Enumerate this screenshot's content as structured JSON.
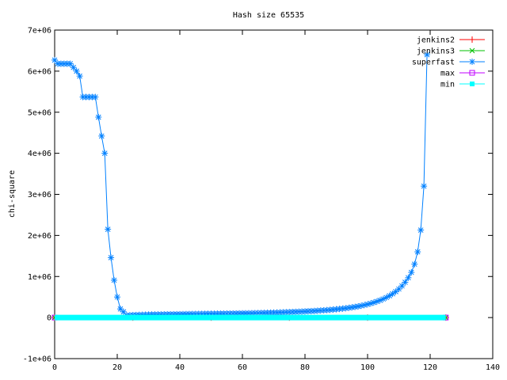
{
  "chart_data": {
    "type": "line",
    "title": "Hash size 65535",
    "xlabel": "",
    "ylabel": "chi-square",
    "xlim": [
      0,
      140
    ],
    "ylim": [
      -1000000,
      7000000
    ],
    "x_ticks": [
      0,
      20,
      40,
      60,
      80,
      100,
      120,
      140
    ],
    "x_tick_labels": [
      "0",
      "20",
      "40",
      "60",
      "80",
      "100",
      "120",
      "140"
    ],
    "y_ticks": [
      -1000000,
      0,
      1000000,
      2000000,
      3000000,
      4000000,
      5000000,
      6000000,
      7000000
    ],
    "y_tick_labels": [
      "-1e+06",
      "0",
      "1e+06",
      "2e+06",
      "3e+06",
      "4e+06",
      "5e+06",
      "6e+06",
      "7e+06"
    ],
    "grid": false,
    "legend_position": "top-right",
    "series": [
      {
        "name": "jenkins2",
        "color": "#ff0000",
        "marker": "plus",
        "x": [
          0,
          25,
          50,
          75,
          100,
          125
        ],
        "y": [
          0,
          0,
          0,
          0,
          0,
          0
        ]
      },
      {
        "name": "jenkins3",
        "color": "#00c000",
        "marker": "cross",
        "x": [
          0,
          25,
          50,
          75,
          100,
          125
        ],
        "y": [
          0,
          0,
          0,
          0,
          0,
          0
        ]
      },
      {
        "name": "superfast",
        "color": "#0080ff",
        "marker": "star",
        "x": [
          0,
          1,
          2,
          3,
          4,
          5,
          6,
          7,
          8,
          9,
          10,
          11,
          12,
          13,
          14,
          15,
          16,
          17,
          18,
          19,
          20,
          21,
          22,
          23,
          24,
          25,
          26,
          27,
          28,
          29,
          30,
          31,
          32,
          33,
          34,
          35,
          36,
          37,
          38,
          39,
          40,
          41,
          42,
          43,
          44,
          45,
          46,
          47,
          48,
          49,
          50,
          51,
          52,
          53,
          54,
          55,
          56,
          57,
          58,
          59,
          60,
          61,
          62,
          63,
          64,
          65,
          66,
          67,
          68,
          69,
          70,
          71,
          72,
          73,
          74,
          75,
          76,
          77,
          78,
          79,
          80,
          81,
          82,
          83,
          84,
          85,
          86,
          87,
          88,
          89,
          90,
          91,
          92,
          93,
          94,
          95,
          96,
          97,
          98,
          99,
          100,
          101,
          102,
          103,
          104,
          105,
          106,
          107,
          108,
          109,
          110,
          111,
          112,
          113,
          114,
          115,
          116,
          117,
          118,
          119,
          120,
          121,
          122,
          123,
          124,
          125
        ],
        "y": [
          6270000,
          6180000,
          6180000,
          6180000,
          6180000,
          6180000,
          6090000,
          6000000,
          5880000,
          5370000,
          5370000,
          5370000,
          5370000,
          5370000,
          4880000,
          4420000,
          4000000,
          2150000,
          1460000,
          910000,
          500000,
          210000,
          140000,
          50000,
          55000,
          60000,
          62000,
          65000,
          67000,
          70000,
          72000,
          74000,
          75000,
          76000,
          77000,
          78000,
          79000,
          80000,
          81000,
          82000,
          83000,
          84000,
          85000,
          86000,
          87000,
          88000,
          89000,
          90000,
          91000,
          92000,
          93000,
          94000,
          95000,
          96000,
          97000,
          98000,
          99000,
          100000,
          101000,
          102000,
          103000,
          104000,
          105000,
          106000,
          108000,
          110000,
          112000,
          114000,
          116000,
          118000,
          120000,
          122000,
          125000,
          128000,
          131000,
          134000,
          137000,
          140000,
          143000,
          146000,
          150000,
          154000,
          158000,
          162000,
          167000,
          172000,
          177000,
          182000,
          188000,
          195000,
          202000,
          210000,
          218000,
          227000,
          237000,
          248000,
          260000,
          273000,
          288000,
          305000,
          323000,
          343000,
          366000,
          392000,
          420000,
          452000,
          488000,
          530000,
          578000,
          632000,
          695000,
          770000,
          860000,
          970000,
          1100000,
          1300000,
          1600000,
          2130000,
          3200000,
          6400000,
          0,
          0,
          0,
          0,
          0,
          0
        ]
      },
      {
        "name": "max",
        "color": "#c000ff",
        "marker": "square",
        "x": [
          0,
          125
        ],
        "y": [
          0,
          0
        ]
      },
      {
        "name": "min",
        "color": "#00ffff",
        "marker": "filled-square",
        "x": [
          0,
          125
        ],
        "y": [
          0,
          0
        ]
      }
    ]
  }
}
